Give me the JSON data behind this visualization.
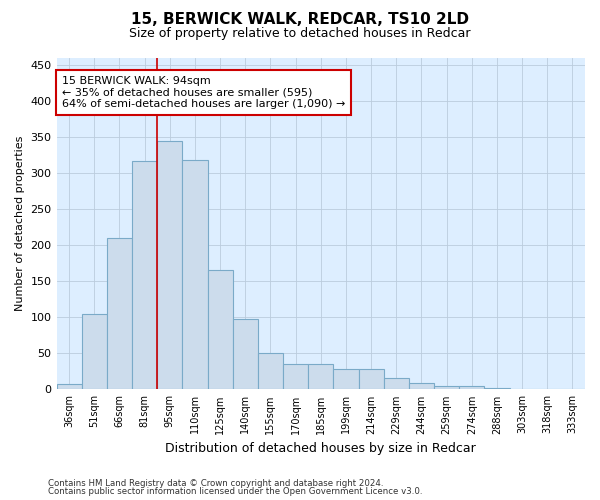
{
  "title": "15, BERWICK WALK, REDCAR, TS10 2LD",
  "subtitle": "Size of property relative to detached houses in Redcar",
  "xlabel": "Distribution of detached houses by size in Redcar",
  "ylabel": "Number of detached properties",
  "footnote1": "Contains HM Land Registry data © Crown copyright and database right 2024.",
  "footnote2": "Contains public sector information licensed under the Open Government Licence v3.0.",
  "bar_color": "#ccdcec",
  "bar_edge_color": "#7aaac8",
  "grid_color": "#bbccdd",
  "bg_color": "#ddeeff",
  "annotation_box_color": "#cc0000",
  "vline_color": "#cc0000",
  "categories": [
    "36sqm",
    "51sqm",
    "66sqm",
    "81sqm",
    "95sqm",
    "110sqm",
    "125sqm",
    "140sqm",
    "155sqm",
    "170sqm",
    "185sqm",
    "199sqm",
    "214sqm",
    "229sqm",
    "244sqm",
    "259sqm",
    "274sqm",
    "288sqm",
    "303sqm",
    "318sqm",
    "333sqm"
  ],
  "bar_heights": [
    7,
    105,
    210,
    316,
    344,
    318,
    165,
    97,
    50,
    35,
    35,
    28,
    28,
    16,
    9,
    5,
    5,
    2,
    1,
    1,
    1
  ],
  "vline_index": 4,
  "annotation_line1": "15 BERWICK WALK: 94sqm",
  "annotation_line2": "← 35% of detached houses are smaller (595)",
  "annotation_line3": "64% of semi-detached houses are larger (1,090) →",
  "ylim": [
    0,
    460
  ],
  "yticks": [
    0,
    50,
    100,
    150,
    200,
    250,
    300,
    350,
    400,
    450
  ]
}
